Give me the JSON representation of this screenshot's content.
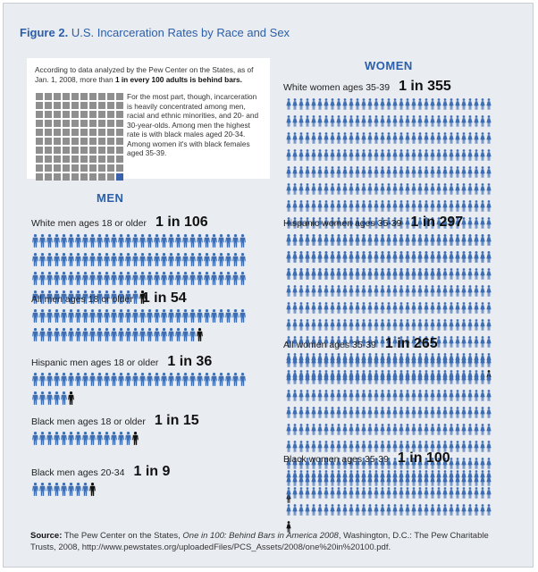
{
  "header": {
    "figure_label": "Figure 2.",
    "title": "U.S. Incarceration Rates by Race and Sex"
  },
  "intro": {
    "text_before": "According to data analyzed by the Pew Center on the States, as of Jan. 1, 2008, more than ",
    "text_bold": "1 in every 100 adults is behind bars.",
    "detail": "For the most part, though, incarceration is heavily concentrated among men, racial and ethnic minorities, and 20- and 30-year-olds. Among men the highest rate is with black males aged 20-34. Among women it's with black females aged 35-39."
  },
  "sections": {
    "men": "MEN",
    "women": "WOMEN"
  },
  "colors": {
    "figure_blue": "#3d6db3",
    "highlight_black": "#111111",
    "grid_gray": "#8f8f8f",
    "grid_highlight": "#3b63ad"
  },
  "chart_data": {
    "type": "table",
    "unit_grid": {
      "total": 100,
      "highlighted": 1
    },
    "men": [
      {
        "label": "White men ages 18 or older",
        "rate": "1 in 106",
        "denominator": 106
      },
      {
        "label": "All men ages 18 or older",
        "rate": "1 in 54",
        "denominator": 54
      },
      {
        "label": "Hispanic men ages 18 or older",
        "rate": "1 in 36",
        "denominator": 36
      },
      {
        "label": "Black men ages 18 or older",
        "rate": "1 in 15",
        "denominator": 15
      },
      {
        "label": "Black men ages 20-34",
        "rate": "1 in 9",
        "denominator": 9
      }
    ],
    "women": [
      {
        "label": "White women ages 35-39",
        "rate": "1 in 355",
        "denominator": 355
      },
      {
        "label": "Hispanic women ages 35-39",
        "rate": "1 in 297",
        "denominator": 297
      },
      {
        "label": "All women ages 35-39",
        "rate": "1 in 265",
        "denominator": 265
      },
      {
        "label": "Black women ages 35-39",
        "rate": "1 in 100",
        "denominator": 100
      }
    ]
  },
  "source": {
    "prefix": "Source:",
    "text_a": " The Pew Center on the States, ",
    "italic": "One in 100: Behind Bars in America 2008",
    "text_b": ", Washington, D.C.: The Pew Charitable Trusts, 2008, http://www.pewstates.org/uploadedFiles/PCS_Assets/2008/one%20in%20100.pdf."
  }
}
